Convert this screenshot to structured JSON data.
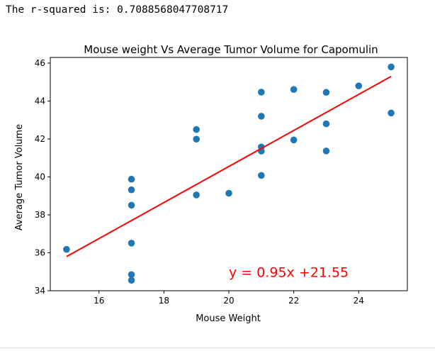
{
  "output": {
    "r_squared_text": "The r-squared is: 0.7088568047708717"
  },
  "chart_data": {
    "type": "scatter",
    "title": "Mouse weight Vs Average Tumor Volume for Capomulin",
    "xlabel": "Mouse Weight",
    "ylabel": "Average Tumor Volume",
    "xlim": [
      14.5,
      25.5
    ],
    "ylim": [
      34,
      46.3
    ],
    "xticks": [
      16,
      18,
      20,
      22,
      24
    ],
    "yticks": [
      34,
      36,
      38,
      40,
      42,
      44,
      46
    ],
    "grid": false,
    "points_color": "#1f77b4",
    "line_color": "#ff0000",
    "points": [
      {
        "x": 15,
        "y": 36.18
      },
      {
        "x": 17,
        "y": 39.88
      },
      {
        "x": 17,
        "y": 39.32
      },
      {
        "x": 17,
        "y": 38.51
      },
      {
        "x": 17,
        "y": 36.51
      },
      {
        "x": 17,
        "y": 34.85
      },
      {
        "x": 17,
        "y": 34.55
      },
      {
        "x": 19,
        "y": 42.5
      },
      {
        "x": 19,
        "y": 41.99
      },
      {
        "x": 19,
        "y": 39.05
      },
      {
        "x": 20,
        "y": 39.14
      },
      {
        "x": 21,
        "y": 44.47
      },
      {
        "x": 21,
        "y": 43.2
      },
      {
        "x": 21,
        "y": 41.58
      },
      {
        "x": 21,
        "y": 41.36
      },
      {
        "x": 21,
        "y": 40.08
      },
      {
        "x": 22,
        "y": 44.61
      },
      {
        "x": 22,
        "y": 41.95
      },
      {
        "x": 23,
        "y": 44.46
      },
      {
        "x": 23,
        "y": 42.8
      },
      {
        "x": 23,
        "y": 41.37
      },
      {
        "x": 24,
        "y": 44.8
      },
      {
        "x": 25,
        "y": 45.8
      },
      {
        "x": 25,
        "y": 43.37
      }
    ],
    "regression": {
      "slope": 0.95,
      "intercept": 21.55,
      "x_range": [
        15,
        25
      ],
      "equation_label": "y = 0.95x +21.55",
      "label_position": {
        "x": 20,
        "y": 35
      }
    }
  }
}
